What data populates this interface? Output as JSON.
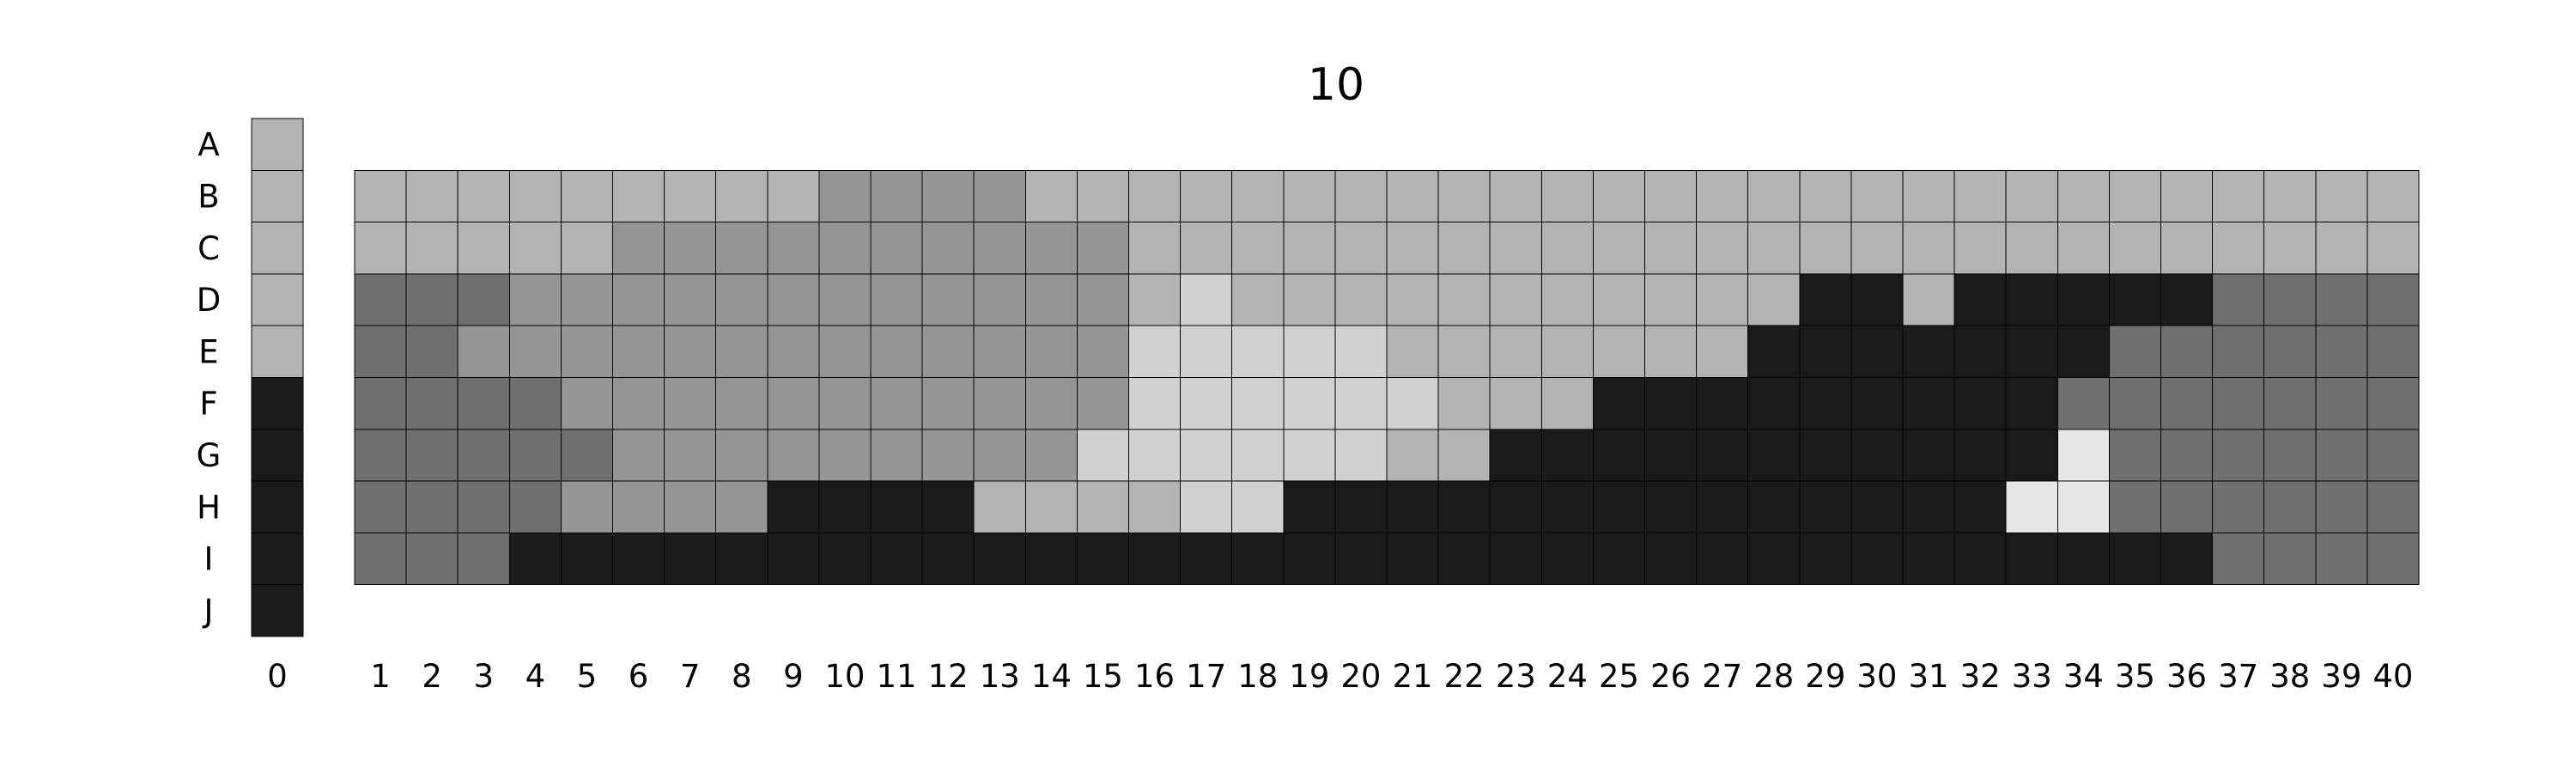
{
  "chart_data": {
    "type": "heatmap",
    "title": "10",
    "rows": [
      "A",
      "B",
      "C",
      "D",
      "E",
      "F",
      "G",
      "H",
      "I",
      "J"
    ],
    "columns": [
      "0",
      "1",
      "2",
      "3",
      "4",
      "5",
      "6",
      "7",
      "8",
      "9",
      "10",
      "11",
      "12",
      "13",
      "14",
      "15",
      "16",
      "17",
      "18",
      "19",
      "20",
      "21",
      "22",
      "23",
      "24",
      "25",
      "26",
      "27",
      "28",
      "29",
      "30",
      "31",
      "32",
      "33",
      "34",
      "35",
      "36",
      "37",
      "38",
      "39",
      "40"
    ],
    "palette": {
      "1": "#1b1b1b",
      "2": "#707070",
      "3": "#959595",
      "4": "#b3b3b3",
      "5": "#d1d1d1",
      "6": "#e6e6e6"
    },
    "column_0": [
      4,
      4,
      4,
      4,
      4,
      1,
      1,
      1,
      1,
      1
    ],
    "grid_rows": [
      "B",
      "C",
      "D",
      "E",
      "F",
      "G",
      "H",
      "I"
    ],
    "grid": [
      [
        4,
        4,
        4,
        4,
        4,
        4,
        4,
        4,
        4,
        3,
        3,
        3,
        3,
        4,
        4,
        4,
        4,
        4,
        4,
        4,
        4,
        4,
        4,
        4,
        4,
        4,
        4,
        4,
        4,
        4,
        4,
        4,
        4,
        4,
        4,
        4,
        4,
        4,
        4,
        4
      ],
      [
        4,
        4,
        4,
        4,
        4,
        3,
        3,
        3,
        3,
        3,
        3,
        3,
        3,
        3,
        3,
        4,
        4,
        4,
        4,
        4,
        4,
        4,
        4,
        4,
        4,
        4,
        4,
        4,
        4,
        4,
        4,
        4,
        4,
        4,
        4,
        4,
        4,
        4,
        4,
        4
      ],
      [
        2,
        2,
        2,
        3,
        3,
        3,
        3,
        3,
        3,
        3,
        3,
        3,
        3,
        3,
        3,
        4,
        5,
        4,
        4,
        4,
        4,
        4,
        4,
        4,
        4,
        4,
        4,
        4,
        1,
        1,
        4,
        1,
        1,
        1,
        1,
        1,
        2,
        2,
        2,
        2
      ],
      [
        2,
        2,
        3,
        3,
        3,
        3,
        3,
        3,
        3,
        3,
        3,
        3,
        3,
        3,
        3,
        5,
        5,
        5,
        5,
        5,
        4,
        4,
        4,
        4,
        4,
        4,
        4,
        1,
        1,
        1,
        1,
        1,
        1,
        1,
        2,
        2,
        2,
        2,
        2,
        2
      ],
      [
        2,
        2,
        2,
        2,
        3,
        3,
        3,
        3,
        3,
        3,
        3,
        3,
        3,
        3,
        3,
        5,
        5,
        5,
        5,
        5,
        5,
        4,
        4,
        4,
        1,
        1,
        1,
        1,
        1,
        1,
        1,
        1,
        1,
        2,
        2,
        2,
        2,
        2,
        2,
        2
      ],
      [
        2,
        2,
        2,
        2,
        2,
        3,
        3,
        3,
        3,
        3,
        3,
        3,
        3,
        3,
        5,
        5,
        5,
        5,
        5,
        5,
        4,
        4,
        1,
        1,
        1,
        1,
        1,
        1,
        1,
        1,
        1,
        1,
        1,
        6,
        2,
        2,
        2,
        2,
        2,
        2
      ],
      [
        2,
        2,
        2,
        2,
        3,
        3,
        3,
        3,
        1,
        1,
        1,
        1,
        4,
        4,
        4,
        4,
        5,
        5,
        1,
        1,
        1,
        1,
        1,
        1,
        1,
        1,
        1,
        1,
        1,
        1,
        1,
        1,
        6,
        6,
        2,
        2,
        2,
        2,
        2,
        2
      ],
      [
        2,
        2,
        2,
        1,
        1,
        1,
        1,
        1,
        1,
        1,
        1,
        1,
        1,
        1,
        1,
        1,
        1,
        1,
        1,
        1,
        1,
        1,
        1,
        1,
        1,
        1,
        1,
        1,
        1,
        1,
        1,
        1,
        1,
        1,
        1,
        1,
        2,
        2,
        2,
        2
      ]
    ]
  }
}
